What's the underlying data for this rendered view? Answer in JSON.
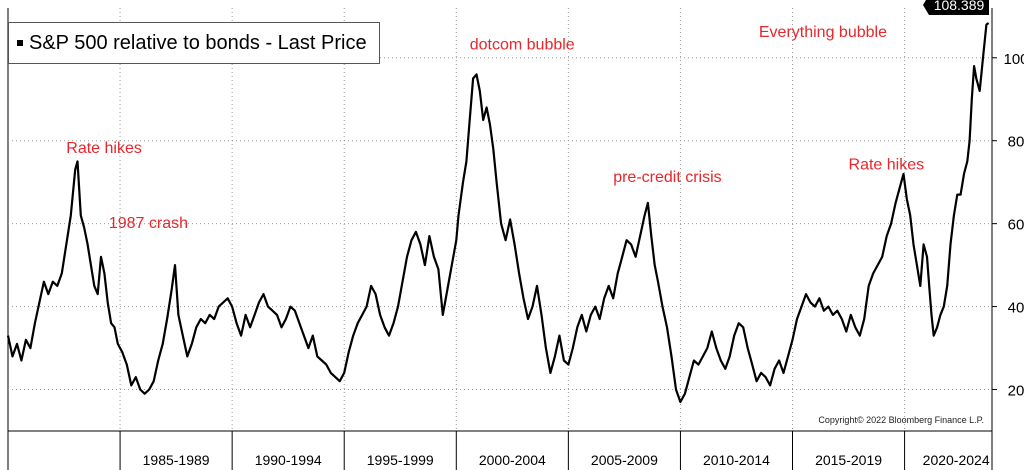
{
  "chart_data": {
    "type": "line",
    "title": "",
    "legend": {
      "label": "S&P 500 relative to bonds - Last Price",
      "placement": "top-left"
    },
    "last_price_label": "108.389",
    "copyright": "Copyright© 2022 Bloomberg Finance L.P.",
    "x_categories": [
      "1985-1989",
      "1990-1994",
      "1995-1999",
      "2000-2004",
      "2005-2009",
      "2010-2014",
      "2015-2019",
      "2020-2024"
    ],
    "y_ticks": [
      20,
      40,
      60,
      80,
      100
    ],
    "ylim": [
      10,
      112
    ],
    "xlim": [
      1980.0,
      2023.9
    ],
    "grid": "dotted",
    "y_axis_side": "right",
    "annotations": [
      {
        "text": "Rate hikes",
        "x": 1982.6,
        "y": 77
      },
      {
        "text": "1987 crash",
        "x": 1984.5,
        "y": 59
      },
      {
        "text": "dotcom bubble",
        "x": 2000.6,
        "y": 102
      },
      {
        "text": "pre-credit crisis",
        "x": 2007.0,
        "y": 70
      },
      {
        "text": "Everything bubble",
        "x": 2013.5,
        "y": 105
      },
      {
        "text": "Rate hikes",
        "x": 2017.5,
        "y": 73
      }
    ],
    "annotation_color": "#e8262b",
    "series": [
      {
        "values": [
          [
            1980.0,
            33
          ],
          [
            1980.2,
            28
          ],
          [
            1980.4,
            31
          ],
          [
            1980.6,
            27
          ],
          [
            1980.8,
            32
          ],
          [
            1981.0,
            30
          ],
          [
            1981.2,
            36
          ],
          [
            1981.4,
            41
          ],
          [
            1981.6,
            46
          ],
          [
            1981.8,
            43
          ],
          [
            1982.0,
            46
          ],
          [
            1982.2,
            45
          ],
          [
            1982.4,
            48
          ],
          [
            1982.6,
            55
          ],
          [
            1982.8,
            62
          ],
          [
            1983.0,
            73
          ],
          [
            1983.1,
            75
          ],
          [
            1983.25,
            62
          ],
          [
            1983.4,
            59
          ],
          [
            1983.55,
            55
          ],
          [
            1983.7,
            50
          ],
          [
            1983.85,
            45
          ],
          [
            1984.0,
            43
          ],
          [
            1984.15,
            52
          ],
          [
            1984.3,
            48
          ],
          [
            1984.45,
            41
          ],
          [
            1984.6,
            36
          ],
          [
            1984.75,
            35
          ],
          [
            1984.9,
            31
          ],
          [
            1985.1,
            29
          ],
          [
            1985.3,
            26
          ],
          [
            1985.5,
            21
          ],
          [
            1985.7,
            23
          ],
          [
            1985.9,
            20
          ],
          [
            1986.1,
            19
          ],
          [
            1986.3,
            20
          ],
          [
            1986.5,
            22
          ],
          [
            1986.7,
            27
          ],
          [
            1986.9,
            31
          ],
          [
            1987.1,
            37
          ],
          [
            1987.3,
            44
          ],
          [
            1987.45,
            50
          ],
          [
            1987.6,
            38
          ],
          [
            1987.8,
            33
          ],
          [
            1988.0,
            28
          ],
          [
            1988.2,
            31
          ],
          [
            1988.4,
            35
          ],
          [
            1988.6,
            37
          ],
          [
            1988.8,
            36
          ],
          [
            1989.0,
            38
          ],
          [
            1989.2,
            37
          ],
          [
            1989.4,
            40
          ],
          [
            1989.6,
            41
          ],
          [
            1989.8,
            42
          ],
          [
            1990.0,
            40
          ],
          [
            1990.2,
            36
          ],
          [
            1990.4,
            33
          ],
          [
            1990.6,
            38
          ],
          [
            1990.8,
            35
          ],
          [
            1991.0,
            38
          ],
          [
            1991.2,
            41
          ],
          [
            1991.4,
            43
          ],
          [
            1991.6,
            40
          ],
          [
            1991.8,
            39
          ],
          [
            1992.0,
            38
          ],
          [
            1992.2,
            35
          ],
          [
            1992.4,
            37
          ],
          [
            1992.6,
            40
          ],
          [
            1992.8,
            39
          ],
          [
            1993.0,
            36
          ],
          [
            1993.2,
            33
          ],
          [
            1993.4,
            30
          ],
          [
            1993.6,
            33
          ],
          [
            1993.8,
            28
          ],
          [
            1994.0,
            27
          ],
          [
            1994.2,
            26
          ],
          [
            1994.4,
            24
          ],
          [
            1994.6,
            23
          ],
          [
            1994.8,
            22
          ],
          [
            1995.0,
            24
          ],
          [
            1995.2,
            29
          ],
          [
            1995.4,
            33
          ],
          [
            1995.6,
            36
          ],
          [
            1995.8,
            38
          ],
          [
            1996.0,
            40
          ],
          [
            1996.2,
            45
          ],
          [
            1996.4,
            43
          ],
          [
            1996.6,
            38
          ],
          [
            1996.8,
            35
          ],
          [
            1997.0,
            33
          ],
          [
            1997.2,
            36
          ],
          [
            1997.4,
            40
          ],
          [
            1997.6,
            46
          ],
          [
            1997.8,
            52
          ],
          [
            1998.0,
            56
          ],
          [
            1998.2,
            58
          ],
          [
            1998.4,
            55
          ],
          [
            1998.6,
            50
          ],
          [
            1998.8,
            57
          ],
          [
            1999.0,
            52
          ],
          [
            1999.2,
            49
          ],
          [
            1999.4,
            38
          ],
          [
            1999.6,
            44
          ],
          [
            1999.8,
            50
          ],
          [
            2000.0,
            56
          ],
          [
            2000.1,
            62
          ],
          [
            2000.3,
            70
          ],
          [
            2000.45,
            75
          ],
          [
            2000.6,
            85
          ],
          [
            2000.75,
            95
          ],
          [
            2000.9,
            96
          ],
          [
            2001.05,
            92
          ],
          [
            2001.2,
            85
          ],
          [
            2001.35,
            88
          ],
          [
            2001.5,
            84
          ],
          [
            2001.65,
            78
          ],
          [
            2001.8,
            70
          ],
          [
            2002.0,
            60
          ],
          [
            2002.2,
            56
          ],
          [
            2002.4,
            61
          ],
          [
            2002.6,
            55
          ],
          [
            2002.8,
            48
          ],
          [
            2003.0,
            42
          ],
          [
            2003.2,
            37
          ],
          [
            2003.4,
            40
          ],
          [
            2003.6,
            45
          ],
          [
            2003.8,
            38
          ],
          [
            2004.0,
            30
          ],
          [
            2004.2,
            24
          ],
          [
            2004.4,
            28
          ],
          [
            2004.6,
            33
          ],
          [
            2004.8,
            27
          ],
          [
            2005.0,
            26
          ],
          [
            2005.2,
            30
          ],
          [
            2005.4,
            35
          ],
          [
            2005.6,
            38
          ],
          [
            2005.8,
            34
          ],
          [
            2006.0,
            38
          ],
          [
            2006.2,
            40
          ],
          [
            2006.4,
            37
          ],
          [
            2006.6,
            42
          ],
          [
            2006.8,
            45
          ],
          [
            2007.0,
            42
          ],
          [
            2007.2,
            48
          ],
          [
            2007.4,
            52
          ],
          [
            2007.6,
            56
          ],
          [
            2007.8,
            55
          ],
          [
            2008.0,
            52
          ],
          [
            2008.2,
            57
          ],
          [
            2008.4,
            62
          ],
          [
            2008.55,
            65
          ],
          [
            2008.7,
            57
          ],
          [
            2008.85,
            50
          ],
          [
            2009.0,
            46
          ],
          [
            2009.2,
            40
          ],
          [
            2009.4,
            35
          ],
          [
            2009.6,
            28
          ],
          [
            2009.8,
            20
          ],
          [
            2010.0,
            17
          ],
          [
            2010.2,
            19
          ],
          [
            2010.4,
            23
          ],
          [
            2010.6,
            27
          ],
          [
            2010.8,
            26
          ],
          [
            2011.0,
            28
          ],
          [
            2011.2,
            30
          ],
          [
            2011.4,
            34
          ],
          [
            2011.6,
            30
          ],
          [
            2011.8,
            27
          ],
          [
            2012.0,
            25
          ],
          [
            2012.2,
            28
          ],
          [
            2012.4,
            33
          ],
          [
            2012.6,
            36
          ],
          [
            2012.8,
            35
          ],
          [
            2013.0,
            30
          ],
          [
            2013.2,
            26
          ],
          [
            2013.4,
            22
          ],
          [
            2013.6,
            24
          ],
          [
            2013.8,
            23
          ],
          [
            2014.0,
            21
          ],
          [
            2014.2,
            25
          ],
          [
            2014.4,
            27
          ],
          [
            2014.6,
            24
          ],
          [
            2014.8,
            28
          ],
          [
            2015.0,
            32
          ],
          [
            2015.2,
            37
          ],
          [
            2015.4,
            40
          ],
          [
            2015.6,
            43
          ],
          [
            2015.8,
            41
          ],
          [
            2016.0,
            40
          ],
          [
            2016.2,
            42
          ],
          [
            2016.4,
            39
          ],
          [
            2016.6,
            40
          ],
          [
            2016.8,
            38
          ],
          [
            2017.0,
            39
          ],
          [
            2017.2,
            37
          ],
          [
            2017.4,
            34
          ],
          [
            2017.6,
            38
          ],
          [
            2017.8,
            35
          ],
          [
            2018.0,
            33
          ],
          [
            2018.2,
            37
          ],
          [
            2018.4,
            45
          ],
          [
            2018.6,
            48
          ],
          [
            2018.8,
            50
          ],
          [
            2019.0,
            52
          ],
          [
            2019.2,
            57
          ],
          [
            2019.4,
            60
          ],
          [
            2019.6,
            65
          ],
          [
            2019.8,
            69
          ],
          [
            2019.95,
            72
          ],
          [
            2020.1,
            66
          ],
          [
            2020.25,
            62
          ],
          [
            2020.4,
            55
          ],
          [
            2020.55,
            50
          ],
          [
            2020.7,
            45
          ],
          [
            2020.85,
            55
          ],
          [
            2021.0,
            52
          ],
          [
            2021.1,
            45
          ],
          [
            2021.2,
            38
          ],
          [
            2021.3,
            33
          ],
          [
            2021.45,
            35
          ],
          [
            2021.6,
            38
          ],
          [
            2021.75,
            40
          ],
          [
            2021.9,
            45
          ],
          [
            2022.05,
            55
          ],
          [
            2022.2,
            62
          ],
          [
            2022.35,
            67
          ],
          [
            2022.5,
            67
          ],
          [
            2022.65,
            72
          ],
          [
            2022.8,
            75
          ],
          [
            2022.9,
            80
          ],
          [
            2023.0,
            90
          ],
          [
            2023.1,
            98
          ],
          [
            2023.2,
            95
          ],
          [
            2023.35,
            92
          ],
          [
            2023.5,
            100
          ],
          [
            2023.65,
            108
          ],
          [
            2023.75,
            108.389
          ]
        ]
      }
    ]
  }
}
